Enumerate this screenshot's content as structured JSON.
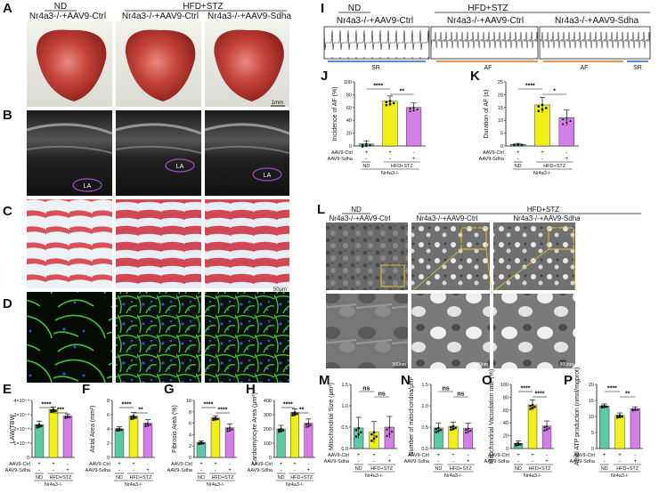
{
  "panel_letters": {
    "A": "A",
    "B": "B",
    "C": "C",
    "D": "D",
    "E": "E",
    "F": "F",
    "G": "G",
    "H": "H",
    "I": "I",
    "J": "J",
    "K": "K",
    "L": "L",
    "M": "M",
    "N": "N",
    "O": "O",
    "P": "P"
  },
  "groups": {
    "nd": "ND",
    "hfd": "HFD+STZ",
    "ctrl_nd": "Nr4a3-/-+AAV9-Ctrl",
    "ctrl_hfd": "Nr4a3-/-+AAV9-Ctrl",
    "sdha_hfd": "Nr4a3-/-+AAV9-Sdha"
  },
  "scale_bars": {
    "A": "1mm",
    "C": "50μm",
    "L1": "500nm",
    "L2": "500nm",
    "L3": "500nm"
  },
  "echo_label": "LA",
  "ecg_labels": {
    "sr1": "SR",
    "af1": "AF",
    "af2": "AF",
    "sr2": "SR"
  },
  "x_labels": {
    "ctrl": "AAV9-Ctrl",
    "sdha": "AAV9-Sdha",
    "nd": "ND",
    "hfd": "HFD+STZ",
    "genotype": "Nr4a3-/-",
    "plus": "+",
    "minus": "-"
  },
  "colors": {
    "nd": "#5cc9a7",
    "ctrl": "#f0ef18",
    "sdha": "#d47fe8"
  },
  "chart_data": [
    {
      "id": "E",
      "type": "bar",
      "ylabel": "LAW/TBW",
      "yticks": [
        "0",
        "1×10⁻⁴",
        "2×10⁻⁴",
        "3×10⁻⁴",
        "4×10⁻⁴"
      ],
      "ylim": [
        0,
        4
      ],
      "values": [
        2.3,
        3.35,
        2.9
      ],
      "errors": [
        0.25,
        0.2,
        0.15
      ],
      "sig": [
        {
          "label": "****",
          "from": 0,
          "to": 1
        },
        {
          "label": "***",
          "from": 1,
          "to": 2
        }
      ]
    },
    {
      "id": "F",
      "type": "bar",
      "ylabel": "Atrial Area (mm²)",
      "yticks": [
        "0",
        "2",
        "4",
        "6",
        "8"
      ],
      "ylim": [
        0,
        8
      ],
      "values": [
        4.0,
        5.8,
        4.8
      ],
      "errors": [
        0.3,
        0.5,
        0.5
      ],
      "sig": [
        {
          "label": "****",
          "from": 0,
          "to": 1
        },
        {
          "label": "**",
          "from": 1,
          "to": 2
        }
      ]
    },
    {
      "id": "G",
      "type": "bar",
      "ylabel": "Fibrosis Area (%)",
      "yticks": [
        "0",
        "2",
        "4",
        "6",
        "8",
        "10"
      ],
      "ylim": [
        0,
        10
      ],
      "values": [
        2.6,
        6.9,
        5.2
      ],
      "errors": [
        0.3,
        0.4,
        0.7
      ],
      "sig": [
        {
          "label": "****",
          "from": 0,
          "to": 1
        },
        {
          "label": "****",
          "from": 1,
          "to": 2
        }
      ]
    },
    {
      "id": "H",
      "type": "bar",
      "ylabel": "Cardiomyocyte Area (μm²)",
      "yticks": [
        "0",
        "100",
        "200",
        "300",
        "400"
      ],
      "ylim": [
        0,
        400
      ],
      "values": [
        200,
        315,
        240
      ],
      "errors": [
        25,
        25,
        30
      ],
      "sig": [
        {
          "label": "****",
          "from": 0,
          "to": 1
        },
        {
          "label": "**",
          "from": 1,
          "to": 2
        }
      ]
    },
    {
      "id": "J",
      "type": "bar",
      "ylabel": "Incidence of AF (%)",
      "yticks": [
        "0",
        "20",
        "40",
        "60",
        "80",
        "100"
      ],
      "ylim": [
        0,
        100
      ],
      "values": [
        3,
        70,
        60
      ],
      "errors": [
        5,
        8,
        7
      ],
      "sig": [
        {
          "label": "****",
          "from": 0,
          "to": 1
        },
        {
          "label": "**",
          "from": 1,
          "to": 2
        }
      ]
    },
    {
      "id": "K",
      "type": "bar",
      "ylabel": "Duration of AF (s)",
      "yticks": [
        "0",
        "5",
        "10",
        "15",
        "20",
        "25"
      ],
      "ylim": [
        0,
        25
      ],
      "values": [
        0.6,
        16,
        11
      ],
      "errors": [
        0.4,
        3,
        3
      ],
      "sig": [
        {
          "label": "****",
          "from": 0,
          "to": 1
        },
        {
          "label": "*",
          "from": 1,
          "to": 2
        }
      ]
    },
    {
      "id": "M",
      "type": "bar",
      "ylabel": "Mitochondrial Size (μm²)",
      "yticks": [
        "0.0",
        "0.5",
        "1.0",
        "1.5"
      ],
      "ylim": [
        0,
        1.5
      ],
      "values": [
        0.48,
        0.38,
        0.5
      ],
      "errors": [
        0.25,
        0.25,
        0.25
      ],
      "sig": [
        {
          "label": "ns",
          "from": 0,
          "to": 1
        },
        {
          "label": "ns",
          "from": 1,
          "to": 2
        }
      ]
    },
    {
      "id": "N",
      "type": "bar",
      "ylabel": "Number of mitochondria/μm²",
      "yticks": [
        "0.0",
        "0.5",
        "1.0",
        "1.5"
      ],
      "ylim": [
        0,
        1.5
      ],
      "values": [
        0.48,
        0.52,
        0.47
      ],
      "errors": [
        0.12,
        0.1,
        0.12
      ],
      "sig": [
        {
          "label": "ns",
          "from": 0,
          "to": 1
        },
        {
          "label": "ns",
          "from": 1,
          "to": 2
        }
      ]
    },
    {
      "id": "O",
      "type": "bar",
      "ylabel": "Mitochondrial Vacuolation rate (%)",
      "yticks": [
        "0",
        "20",
        "40",
        "60",
        "80",
        "100"
      ],
      "ylim": [
        0,
        100
      ],
      "values": [
        8,
        68,
        35
      ],
      "errors": [
        4,
        8,
        8
      ],
      "sig": [
        {
          "label": "****",
          "from": 0,
          "to": 1
        },
        {
          "label": "****",
          "from": 1,
          "to": 2
        }
      ]
    },
    {
      "id": "P",
      "type": "bar",
      "ylabel": "Atrial ATP production (nmol/mgprot)",
      "yticks": [
        "0",
        "5",
        "10",
        "15",
        "20"
      ],
      "ylim": [
        0,
        20
      ],
      "values": [
        13.3,
        10.3,
        12.4
      ],
      "errors": [
        0.6,
        0.8,
        0.6
      ],
      "sig": [
        {
          "label": "****",
          "from": 0,
          "to": 1
        },
        {
          "label": "**",
          "from": 1,
          "to": 2
        }
      ]
    }
  ]
}
